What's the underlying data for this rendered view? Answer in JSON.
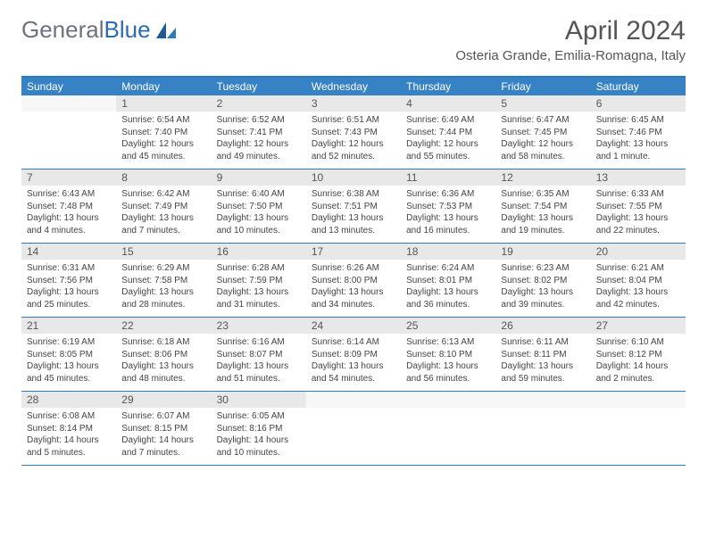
{
  "logo": {
    "text_gray": "General",
    "text_blue": "Blue"
  },
  "month_title": "April 2024",
  "location": "Osteria Grande, Emilia-Romagna, Italy",
  "colors": {
    "header_bar": "#3682c4",
    "border": "#2b7bbf",
    "daynum_bg": "#e8e8e8",
    "text_muted": "#555555"
  },
  "typography": {
    "title_fontsize": 30,
    "location_fontsize": 15,
    "dow_fontsize": 12,
    "daynum_fontsize": 12,
    "details_fontsize": 10
  },
  "days_of_week": [
    "Sunday",
    "Monday",
    "Tuesday",
    "Wednesday",
    "Thursday",
    "Friday",
    "Saturday"
  ],
  "weeks": [
    [
      {
        "num": "",
        "lines": []
      },
      {
        "num": "1",
        "lines": [
          "Sunrise: 6:54 AM",
          "Sunset: 7:40 PM",
          "Daylight: 12 hours and 45 minutes."
        ]
      },
      {
        "num": "2",
        "lines": [
          "Sunrise: 6:52 AM",
          "Sunset: 7:41 PM",
          "Daylight: 12 hours and 49 minutes."
        ]
      },
      {
        "num": "3",
        "lines": [
          "Sunrise: 6:51 AM",
          "Sunset: 7:43 PM",
          "Daylight: 12 hours and 52 minutes."
        ]
      },
      {
        "num": "4",
        "lines": [
          "Sunrise: 6:49 AM",
          "Sunset: 7:44 PM",
          "Daylight: 12 hours and 55 minutes."
        ]
      },
      {
        "num": "5",
        "lines": [
          "Sunrise: 6:47 AM",
          "Sunset: 7:45 PM",
          "Daylight: 12 hours and 58 minutes."
        ]
      },
      {
        "num": "6",
        "lines": [
          "Sunrise: 6:45 AM",
          "Sunset: 7:46 PM",
          "Daylight: 13 hours and 1 minute."
        ]
      }
    ],
    [
      {
        "num": "7",
        "lines": [
          "Sunrise: 6:43 AM",
          "Sunset: 7:48 PM",
          "Daylight: 13 hours and 4 minutes."
        ]
      },
      {
        "num": "8",
        "lines": [
          "Sunrise: 6:42 AM",
          "Sunset: 7:49 PM",
          "Daylight: 13 hours and 7 minutes."
        ]
      },
      {
        "num": "9",
        "lines": [
          "Sunrise: 6:40 AM",
          "Sunset: 7:50 PM",
          "Daylight: 13 hours and 10 minutes."
        ]
      },
      {
        "num": "10",
        "lines": [
          "Sunrise: 6:38 AM",
          "Sunset: 7:51 PM",
          "Daylight: 13 hours and 13 minutes."
        ]
      },
      {
        "num": "11",
        "lines": [
          "Sunrise: 6:36 AM",
          "Sunset: 7:53 PM",
          "Daylight: 13 hours and 16 minutes."
        ]
      },
      {
        "num": "12",
        "lines": [
          "Sunrise: 6:35 AM",
          "Sunset: 7:54 PM",
          "Daylight: 13 hours and 19 minutes."
        ]
      },
      {
        "num": "13",
        "lines": [
          "Sunrise: 6:33 AM",
          "Sunset: 7:55 PM",
          "Daylight: 13 hours and 22 minutes."
        ]
      }
    ],
    [
      {
        "num": "14",
        "lines": [
          "Sunrise: 6:31 AM",
          "Sunset: 7:56 PM",
          "Daylight: 13 hours and 25 minutes."
        ]
      },
      {
        "num": "15",
        "lines": [
          "Sunrise: 6:29 AM",
          "Sunset: 7:58 PM",
          "Daylight: 13 hours and 28 minutes."
        ]
      },
      {
        "num": "16",
        "lines": [
          "Sunrise: 6:28 AM",
          "Sunset: 7:59 PM",
          "Daylight: 13 hours and 31 minutes."
        ]
      },
      {
        "num": "17",
        "lines": [
          "Sunrise: 6:26 AM",
          "Sunset: 8:00 PM",
          "Daylight: 13 hours and 34 minutes."
        ]
      },
      {
        "num": "18",
        "lines": [
          "Sunrise: 6:24 AM",
          "Sunset: 8:01 PM",
          "Daylight: 13 hours and 36 minutes."
        ]
      },
      {
        "num": "19",
        "lines": [
          "Sunrise: 6:23 AM",
          "Sunset: 8:02 PM",
          "Daylight: 13 hours and 39 minutes."
        ]
      },
      {
        "num": "20",
        "lines": [
          "Sunrise: 6:21 AM",
          "Sunset: 8:04 PM",
          "Daylight: 13 hours and 42 minutes."
        ]
      }
    ],
    [
      {
        "num": "21",
        "lines": [
          "Sunrise: 6:19 AM",
          "Sunset: 8:05 PM",
          "Daylight: 13 hours and 45 minutes."
        ]
      },
      {
        "num": "22",
        "lines": [
          "Sunrise: 6:18 AM",
          "Sunset: 8:06 PM",
          "Daylight: 13 hours and 48 minutes."
        ]
      },
      {
        "num": "23",
        "lines": [
          "Sunrise: 6:16 AM",
          "Sunset: 8:07 PM",
          "Daylight: 13 hours and 51 minutes."
        ]
      },
      {
        "num": "24",
        "lines": [
          "Sunrise: 6:14 AM",
          "Sunset: 8:09 PM",
          "Daylight: 13 hours and 54 minutes."
        ]
      },
      {
        "num": "25",
        "lines": [
          "Sunrise: 6:13 AM",
          "Sunset: 8:10 PM",
          "Daylight: 13 hours and 56 minutes."
        ]
      },
      {
        "num": "26",
        "lines": [
          "Sunrise: 6:11 AM",
          "Sunset: 8:11 PM",
          "Daylight: 13 hours and 59 minutes."
        ]
      },
      {
        "num": "27",
        "lines": [
          "Sunrise: 6:10 AM",
          "Sunset: 8:12 PM",
          "Daylight: 14 hours and 2 minutes."
        ]
      }
    ],
    [
      {
        "num": "28",
        "lines": [
          "Sunrise: 6:08 AM",
          "Sunset: 8:14 PM",
          "Daylight: 14 hours and 5 minutes."
        ]
      },
      {
        "num": "29",
        "lines": [
          "Sunrise: 6:07 AM",
          "Sunset: 8:15 PM",
          "Daylight: 14 hours and 7 minutes."
        ]
      },
      {
        "num": "30",
        "lines": [
          "Sunrise: 6:05 AM",
          "Sunset: 8:16 PM",
          "Daylight: 14 hours and 10 minutes."
        ]
      },
      {
        "num": "",
        "lines": []
      },
      {
        "num": "",
        "lines": []
      },
      {
        "num": "",
        "lines": []
      },
      {
        "num": "",
        "lines": []
      }
    ]
  ]
}
